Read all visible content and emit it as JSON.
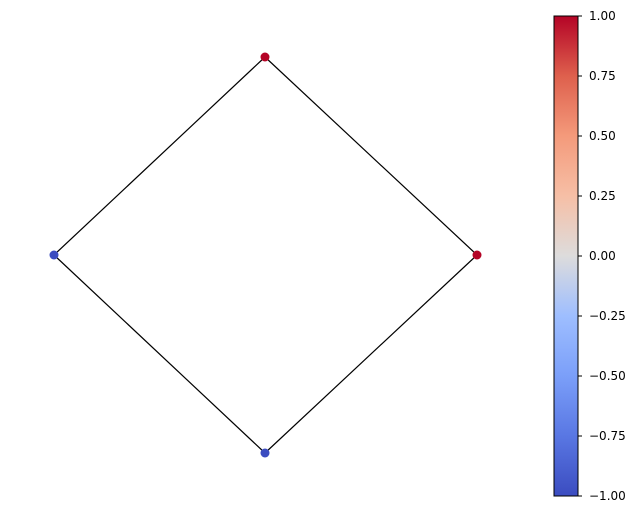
{
  "graph": {
    "nodes": [
      {
        "id": "top",
        "value": 1.0
      },
      {
        "id": "right",
        "value": 1.0
      },
      {
        "id": "bottom",
        "value": -1.0
      },
      {
        "id": "left",
        "value": -1.0
      }
    ],
    "edges": [
      [
        "top",
        "right"
      ],
      [
        "right",
        "bottom"
      ],
      [
        "bottom",
        "left"
      ],
      [
        "left",
        "top"
      ]
    ]
  },
  "colorbar": {
    "colormap": "coolwarm",
    "min": -1.0,
    "max": 1.0,
    "low_color": "#3b4cc0",
    "mid_color": "#dddddd",
    "high_color": "#b40426",
    "tick_labels": [
      "1.00",
      "0.75",
      "0.50",
      "0.25",
      "0.00",
      "−0.25",
      "−0.50",
      "−0.75",
      "−1.00"
    ]
  }
}
